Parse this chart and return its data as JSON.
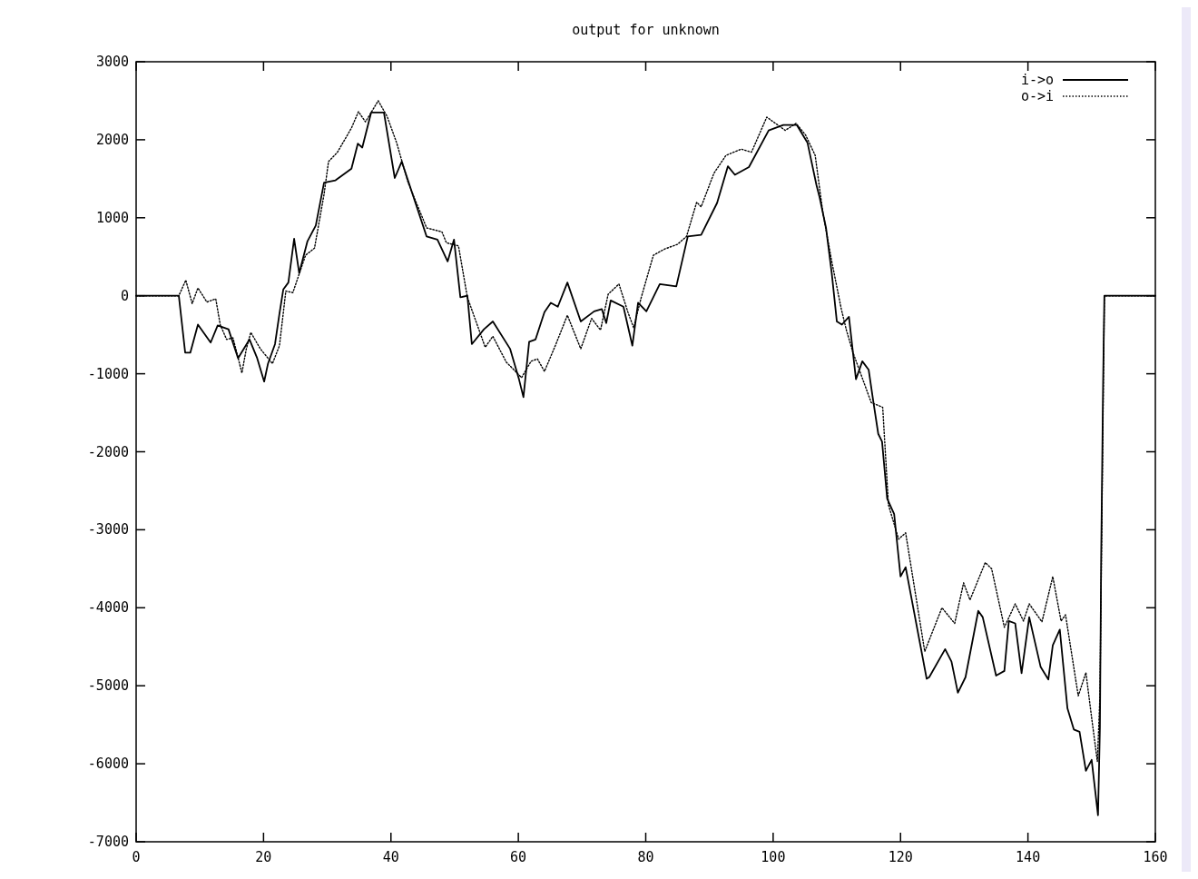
{
  "chart_data": {
    "type": "line",
    "title": "output for unknown",
    "xlim": [
      0,
      160
    ],
    "xticks": [
      0,
      20,
      40,
      60,
      80,
      100,
      120,
      140,
      160
    ],
    "ylim": [
      -7000,
      3000
    ],
    "yticks": [
      -7000,
      -6000,
      -5000,
      -4000,
      -3000,
      -2000,
      -1000,
      0,
      1000,
      2000,
      3000
    ],
    "grid": false,
    "legend": "top right",
    "series": [
      {
        "name": "i->o",
        "color": "#000000",
        "line_style": "solid",
        "x": [
          0,
          6.7,
          7.7,
          8.5,
          9.7,
          11.7,
          12.8,
          14.5,
          16,
          17.8,
          19,
          20.1,
          20.7,
          21.8,
          22.5,
          23.1,
          23.9,
          24.8,
          25.6,
          26.9,
          28.2,
          29.5,
          31.3,
          33.8,
          34.8,
          35.5,
          36.9,
          38.9,
          40.6,
          41.7,
          45.6,
          47.3,
          48.9,
          49.9,
          50.9,
          52,
          52.7,
          54.6,
          56,
          58.7,
          60.1,
          60.8,
          61.7,
          62.7,
          64.1,
          65.1,
          66.2,
          67.7,
          69.8,
          71.9,
          73.1,
          73.8,
          74.5,
          76.5,
          77.9,
          78.8,
          80.1,
          82.2,
          84.8,
          86.6,
          88.7,
          91.2,
          92.9,
          94,
          96.2,
          99.3,
          101.6,
          103.7,
          105.4,
          106.8,
          107.3,
          108.3,
          109.2,
          110,
          110.8,
          111.9,
          113,
          114,
          115,
          115.7,
          116.5,
          117.1,
          117.9,
          119,
          120,
          120.8,
          124.1,
          124.5,
          127,
          128,
          129,
          130.2,
          132.2,
          132.9,
          135,
          136.3,
          137,
          138,
          139,
          140.2,
          142,
          143.2,
          143.9,
          145,
          146.2,
          147.2,
          148.1,
          149.1,
          150,
          151,
          151.3,
          151.5,
          151.8,
          152,
          160
        ],
        "values": [
          0,
          0,
          -730,
          -730,
          -370,
          -600,
          -380,
          -430,
          -800,
          -560,
          -800,
          -1100,
          -870,
          -620,
          -230,
          80,
          170,
          730,
          290,
          700,
          900,
          1450,
          1480,
          1630,
          1950,
          1900,
          2350,
          2350,
          1510,
          1720,
          760,
          720,
          440,
          720,
          -20,
          0,
          -620,
          -430,
          -330,
          -680,
          -1070,
          -1300,
          -590,
          -560,
          -210,
          -90,
          -140,
          170,
          -330,
          -200,
          -170,
          -350,
          -60,
          -140,
          -640,
          -90,
          -200,
          150,
          120,
          760,
          780,
          1190,
          1660,
          1550,
          1650,
          2120,
          2190,
          2190,
          1960,
          1420,
          1260,
          870,
          290,
          -330,
          -370,
          -270,
          -1070,
          -840,
          -950,
          -1340,
          -1770,
          -1870,
          -2600,
          -2800,
          -3600,
          -3480,
          -4910,
          -4890,
          -4530,
          -4690,
          -5090,
          -4890,
          -4040,
          -4120,
          -4870,
          -4810,
          -4170,
          -4200,
          -4840,
          -4120,
          -4760,
          -4920,
          -4480,
          -4280,
          -5290,
          -5560,
          -5590,
          -6090,
          -5950,
          -6660,
          -5530,
          -3320,
          -1120,
          0,
          0
        ]
      },
      {
        "name": "o->i",
        "color": "#000000",
        "line_style": "dotted",
        "x": [
          0,
          6.7,
          7.8,
          8.8,
          9.7,
          11.1,
          12.5,
          13.2,
          14.2,
          15.2,
          15.9,
          16.6,
          17.3,
          18,
          19.5,
          21.4,
          22.5,
          23.5,
          24.6,
          26.6,
          28,
          29.5,
          30.2,
          31.6,
          33.8,
          34.9,
          36,
          38,
          39.4,
          40.9,
          42.7,
          45.6,
          48,
          48.7,
          50.6,
          52,
          54.8,
          56,
          58.1,
          59.8,
          60.5,
          62,
          63,
          64.1,
          65.8,
          67.7,
          69.8,
          71.5,
          72.9,
          74.1,
          75.8,
          77.2,
          78.1,
          79.3,
          81.2,
          83,
          85,
          86.4,
          88,
          88.7,
          90.7,
          92.6,
          95,
          96.6,
          99,
          101.9,
          103.6,
          105.1,
          106.6,
          107.8,
          109.2,
          110.7,
          111.5,
          112.5,
          115.4,
          117.2,
          118.1,
          119.7,
          120.8,
          123.8,
          126.5,
          128.5,
          129.9,
          130.9,
          133.3,
          134.3,
          136.3,
          138,
          139.3,
          140.2,
          142.2,
          143.9,
          145.2,
          145.9,
          147.9,
          149.1,
          150,
          150.9,
          151.3,
          152,
          160
        ],
        "values": [
          0,
          0,
          200,
          -100,
          100,
          -80,
          -40,
          -370,
          -560,
          -540,
          -760,
          -990,
          -680,
          -470,
          -680,
          -870,
          -640,
          60,
          40,
          520,
          610,
          1300,
          1720,
          1840,
          2150,
          2360,
          2230,
          2500,
          2300,
          1960,
          1450,
          870,
          820,
          680,
          640,
          -20,
          -660,
          -520,
          -850,
          -990,
          -1050,
          -840,
          -810,
          -970,
          -640,
          -250,
          -680,
          -290,
          -440,
          20,
          150,
          -210,
          -410,
          -20,
          520,
          600,
          660,
          760,
          1200,
          1140,
          1570,
          1800,
          1880,
          1840,
          2290,
          2120,
          2210,
          2060,
          1800,
          1070,
          440,
          -170,
          -440,
          -720,
          -1370,
          -1430,
          -2680,
          -3120,
          -3040,
          -4560,
          -4000,
          -4200,
          -3680,
          -3900,
          -3420,
          -3500,
          -4250,
          -3950,
          -4170,
          -3950,
          -4180,
          -3600,
          -4170,
          -4090,
          -5130,
          -4830,
          -5410,
          -5970,
          -5130,
          0,
          0
        ]
      }
    ]
  }
}
